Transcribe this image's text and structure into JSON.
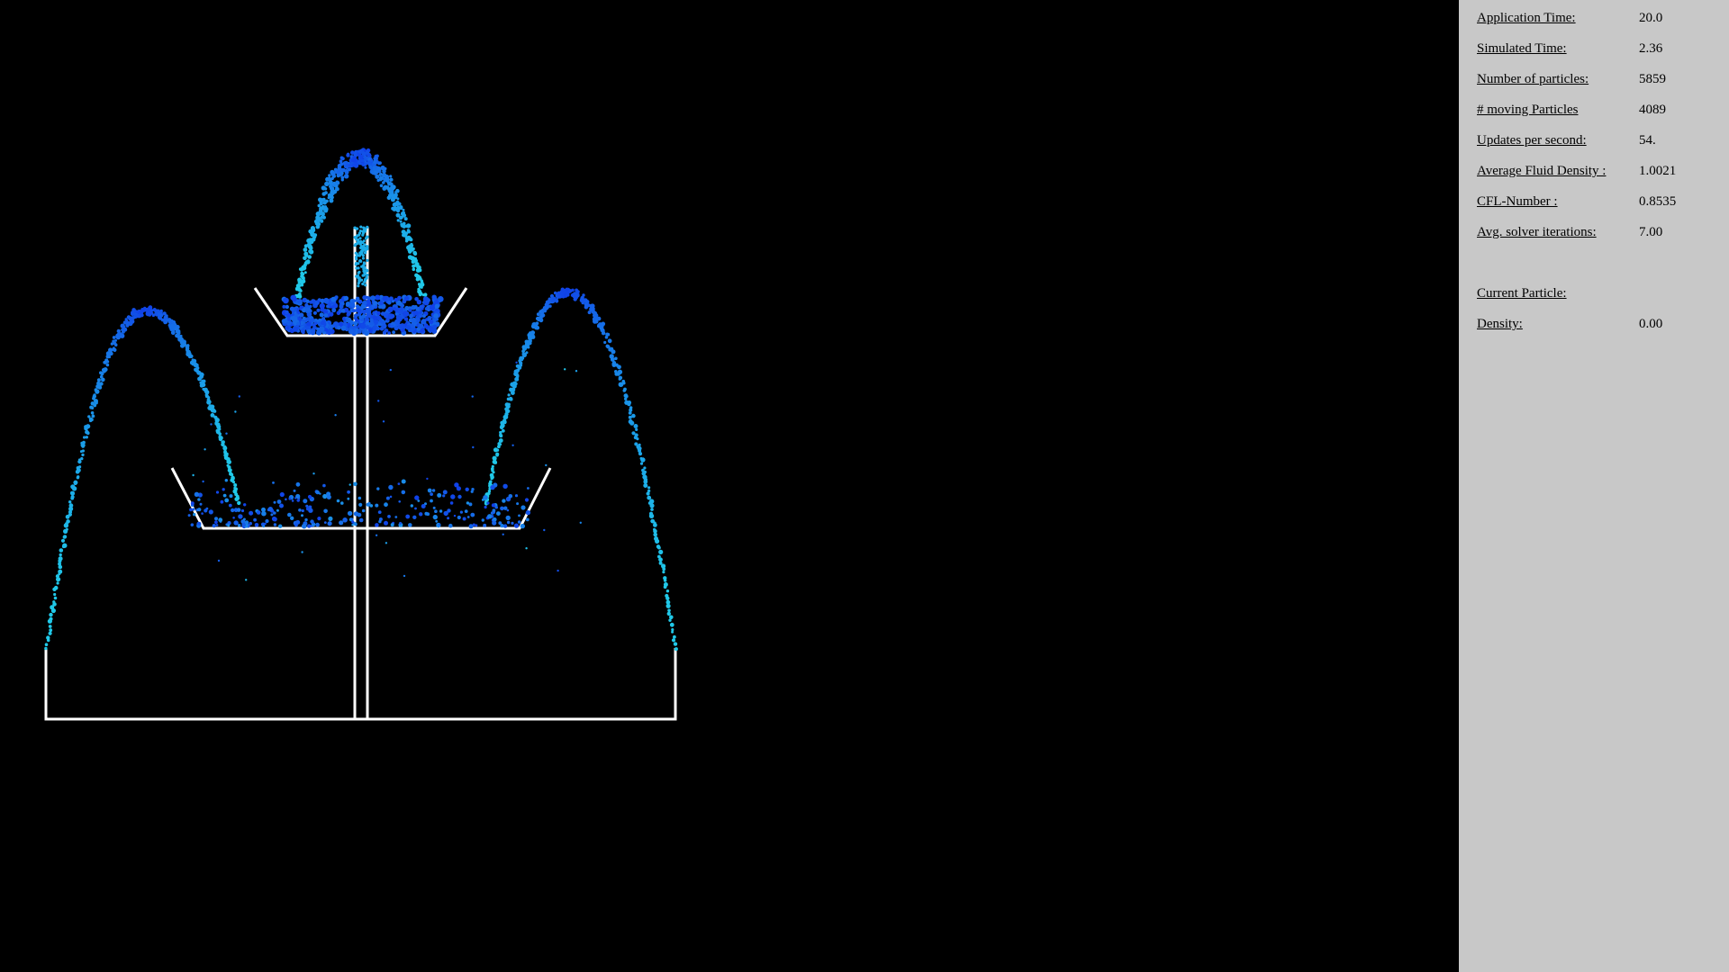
{
  "stats": [
    {
      "label": "Application Time:",
      "value": "20.0"
    },
    {
      "label": "Simulated Time:",
      "value": "2.36"
    },
    {
      "label": "Number of particles:",
      "value": "5859"
    },
    {
      "label": "# moving Particles",
      "value": "4089"
    },
    {
      "label": "Updates per second:",
      "value": "54."
    },
    {
      "label": "Average Fluid Density :",
      "value": "1.0021"
    },
    {
      "label": "CFL-Number :",
      "value": "0.8535"
    },
    {
      "label": "Avg. solver iterations:",
      "value": "7.00"
    }
  ],
  "current_particle": {
    "heading": "Current Particle:",
    "density_label": "Density:",
    "density_value": "0.00"
  },
  "colors": {
    "panel_background": "#c8c8c8",
    "scene_background": "#000000",
    "boundary": "#ffffff",
    "fluid_dense": "#1040e8",
    "fluid_fast": "#20c8e8"
  }
}
